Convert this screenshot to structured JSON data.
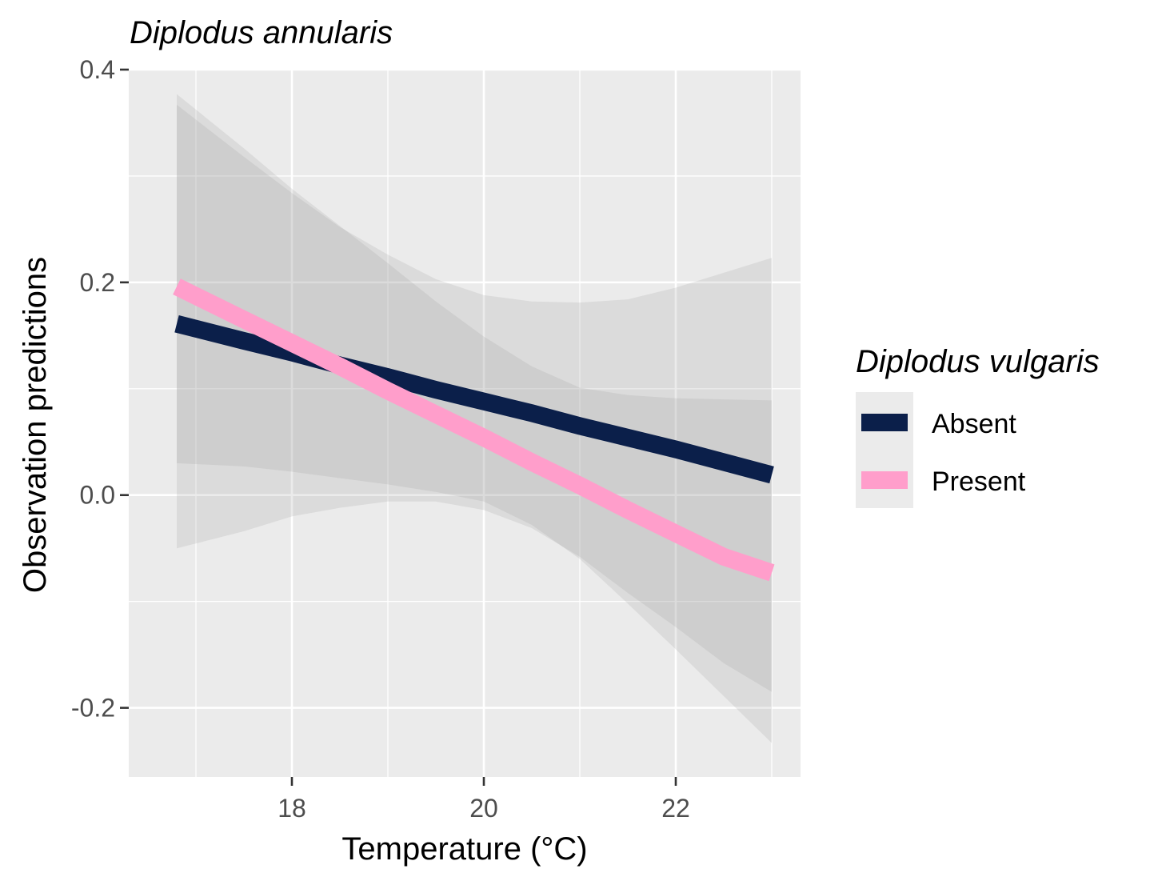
{
  "chart_data": {
    "type": "line",
    "title": "Diplodus annularis",
    "xlabel": "Temperature (°C)",
    "ylabel": "Observation predictions",
    "xlim": [
      16.3,
      23.3
    ],
    "ylim": [
      -0.265,
      0.4
    ],
    "x_ticks": [
      18,
      20,
      22
    ],
    "x_tick_labels": [
      "18",
      "20",
      "22"
    ],
    "y_ticks": [
      -0.2,
      0.0,
      0.2,
      0.4
    ],
    "y_tick_labels": [
      "-0.2",
      "0.0",
      "0.2",
      "0.4"
    ],
    "grid": true,
    "legend": {
      "title": "Diplodus vulgaris",
      "position": "right"
    },
    "series": [
      {
        "name": "Absent",
        "color": "#0b1f4a",
        "x": [
          16.8,
          17.5,
          18.0,
          18.5,
          19.0,
          19.5,
          20.0,
          20.5,
          21.0,
          21.5,
          22.0,
          22.5,
          23.0
        ],
        "values": [
          0.161,
          0.145,
          0.134,
          0.122,
          0.111,
          0.099,
          0.088,
          0.077,
          0.065,
          0.054,
          0.043,
          0.031,
          0.019
        ],
        "ci_lower": [
          -0.05,
          -0.034,
          -0.02,
          -0.012,
          -0.006,
          -0.006,
          -0.014,
          -0.031,
          -0.058,
          -0.092,
          -0.124,
          -0.158,
          -0.185
        ],
        "ci_upper": [
          0.367,
          0.318,
          0.284,
          0.252,
          0.226,
          0.203,
          0.188,
          0.182,
          0.181,
          0.184,
          0.195,
          0.209,
          0.223
        ]
      },
      {
        "name": "Present",
        "color": "#ff9ecb",
        "x": [
          16.8,
          17.5,
          18.0,
          18.5,
          19.0,
          19.5,
          20.0,
          20.5,
          21.0,
          21.5,
          22.0,
          22.5,
          23.0
        ],
        "values": [
          0.196,
          0.165,
          0.143,
          0.121,
          0.098,
          0.076,
          0.054,
          0.031,
          0.009,
          -0.014,
          -0.036,
          -0.058,
          -0.073
        ],
        "ci_lower": [
          0.03,
          0.027,
          0.022,
          0.016,
          0.01,
          0.003,
          -0.006,
          -0.028,
          -0.06,
          -0.102,
          -0.145,
          -0.189,
          -0.233
        ],
        "ci_upper": [
          0.377,
          0.326,
          0.288,
          0.253,
          0.218,
          0.182,
          0.149,
          0.121,
          0.101,
          0.094,
          0.091,
          0.09,
          0.089
        ]
      }
    ]
  }
}
